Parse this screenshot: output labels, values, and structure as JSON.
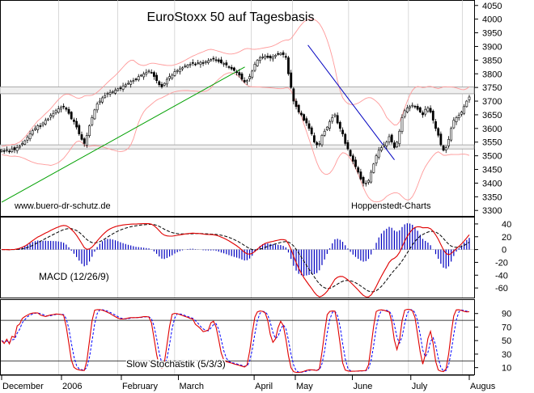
{
  "chart_data": [
    {
      "type": "candlestick",
      "title": "EuroStoxx 50 auf Tagesbasis",
      "watermark_left": "www.buero-dr-schutz.de",
      "watermark_right": "Hoppenstedt-Charts",
      "ylim": [
        3280,
        4070
      ],
      "yticks": [
        3300,
        3350,
        3400,
        3450,
        3500,
        3550,
        3600,
        3650,
        3700,
        3750,
        3800,
        3850,
        3900,
        3950,
        4000,
        4050
      ],
      "horizontal_bands": [
        [
          3525,
          3540
        ],
        [
          3727,
          3752
        ]
      ],
      "trendlines": [
        {
          "color": "#00a000",
          "from": [
            0,
            3330
          ],
          "to": [
            0.52,
            3825
          ]
        },
        {
          "color": "#0000c0",
          "from": [
            0.655,
            3905
          ],
          "to": [
            0.84,
            3485
          ]
        }
      ],
      "bollinger_color": "#ff9999",
      "close": [
        3520,
        3518,
        3522,
        3515,
        3525,
        3522,
        3530,
        3535,
        3545,
        3555,
        3568,
        3580,
        3592,
        3600,
        3610,
        3608,
        3620,
        3630,
        3635,
        3648,
        3655,
        3665,
        3672,
        3678,
        3680,
        3670,
        3655,
        3635,
        3625,
        3605,
        3580,
        3560,
        3545,
        3575,
        3610,
        3640,
        3668,
        3690,
        3700,
        3712,
        3720,
        3728,
        3732,
        3735,
        3740,
        3745,
        3748,
        3755,
        3760,
        3765,
        3772,
        3775,
        3780,
        3790,
        3795,
        3800,
        3805,
        3810,
        3805,
        3790,
        3775,
        3760,
        3752,
        3765,
        3780,
        3790,
        3795,
        3808,
        3812,
        3818,
        3822,
        3828,
        3832,
        3835,
        3838,
        3835,
        3840,
        3842,
        3838,
        3845,
        3848,
        3852,
        3855,
        3850,
        3845,
        3840,
        3838,
        3832,
        3825,
        3818,
        3812,
        3805,
        3795,
        3780,
        3770,
        3775,
        3790,
        3810,
        3835,
        3850,
        3858,
        3862,
        3865,
        3860,
        3858,
        3862,
        3868,
        3872,
        3875,
        3870,
        3860,
        3800,
        3750,
        3700,
        3680,
        3660,
        3650,
        3630,
        3620,
        3600,
        3580,
        3550,
        3540,
        3545,
        3575,
        3590,
        3605,
        3625,
        3640,
        3650,
        3620,
        3600,
        3580,
        3545,
        3525,
        3500,
        3480,
        3460,
        3440,
        3415,
        3400,
        3400,
        3410,
        3440,
        3470,
        3500,
        3520,
        3530,
        3540,
        3550,
        3570,
        3550,
        3530,
        3550,
        3590,
        3640,
        3665,
        3675,
        3680,
        3685,
        3680,
        3670,
        3660,
        3650,
        3670,
        3675,
        3660,
        3630,
        3600,
        3575,
        3540,
        3520,
        3530,
        3560,
        3600,
        3630,
        3640,
        3648,
        3660,
        3680,
        3700,
        3715
      ]
    },
    {
      "type": "line",
      "label": "MACD (12/26/9)",
      "ylim": [
        -75,
        50
      ],
      "yticks": [
        40,
        20,
        0,
        -20,
        -40,
        -60
      ],
      "series_colors": {
        "macd": "#e00000",
        "signal": "#000000",
        "histogram": "#0000c0"
      }
    },
    {
      "type": "line",
      "label": "Slow Stochastik (5/3/3)",
      "ylim": [
        0,
        110
      ],
      "yticks": [
        90,
        70,
        50,
        30,
        10
      ],
      "reference_lines": [
        20,
        80
      ],
      "series_colors": {
        "k": "#e00000",
        "d": "#0000ff"
      }
    }
  ],
  "x_axis": {
    "labels": [
      {
        "text": "December",
        "pos": 0.01
      },
      {
        "text": "2006",
        "pos": 0.128
      },
      {
        "text": "February",
        "pos": 0.256
      },
      {
        "text": "March",
        "pos": 0.378
      },
      {
        "text": "April",
        "pos": 0.54
      },
      {
        "text": "May",
        "pos": 0.628
      },
      {
        "text": "June",
        "pos": 0.75
      },
      {
        "text": "July",
        "pos": 0.875
      },
      {
        "text": "Augus",
        "pos": 1.0
      }
    ]
  }
}
